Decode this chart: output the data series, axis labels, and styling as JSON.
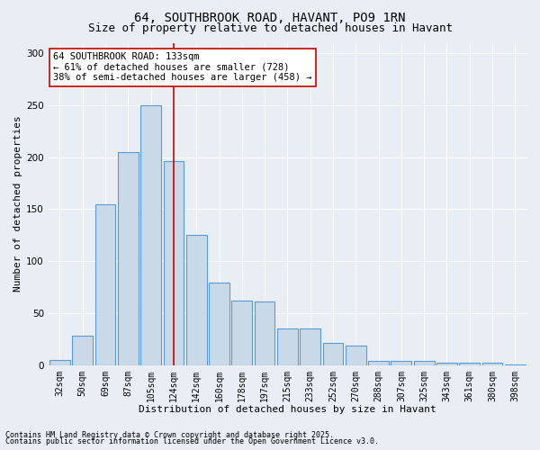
{
  "title_line1": "64, SOUTHBROOK ROAD, HAVANT, PO9 1RN",
  "title_line2": "Size of property relative to detached houses in Havant",
  "xlabel": "Distribution of detached houses by size in Havant",
  "ylabel": "Number of detached properties",
  "categories": [
    "32sqm",
    "50sqm",
    "69sqm",
    "87sqm",
    "105sqm",
    "124sqm",
    "142sqm",
    "160sqm",
    "178sqm",
    "197sqm",
    "215sqm",
    "233sqm",
    "252sqm",
    "270sqm",
    "288sqm",
    "307sqm",
    "325sqm",
    "343sqm",
    "361sqm",
    "380sqm",
    "398sqm"
  ],
  "values": [
    5,
    28,
    155,
    205,
    250,
    196,
    125,
    79,
    62,
    61,
    35,
    35,
    21,
    19,
    4,
    4,
    4,
    2,
    2,
    2,
    1
  ],
  "bar_color": "#c9d9e8",
  "bar_edge_color": "#5b9bd5",
  "property_bin_index": 5,
  "vline_color": "#cc0000",
  "annotation_text": "64 SOUTHBROOK ROAD: 133sqm\n← 61% of detached houses are smaller (728)\n38% of semi-detached houses are larger (458) →",
  "annotation_box_color": "#ffffff",
  "annotation_box_edge": "#cc0000",
  "footnote_line1": "Contains HM Land Registry data © Crown copyright and database right 2025.",
  "footnote_line2": "Contains public sector information licensed under the Open Government Licence v3.0.",
  "ylim": [
    0,
    310
  ],
  "yticks": [
    0,
    50,
    100,
    150,
    200,
    250,
    300
  ],
  "background_color": "#e8eef4",
  "plot_bg_color": "#e8eef4",
  "grid_color": "#ffffff",
  "title_fontsize": 10,
  "subtitle_fontsize": 9,
  "axis_label_fontsize": 8,
  "tick_fontsize": 7,
  "annot_fontsize": 7.5,
  "footnote_fontsize": 6
}
